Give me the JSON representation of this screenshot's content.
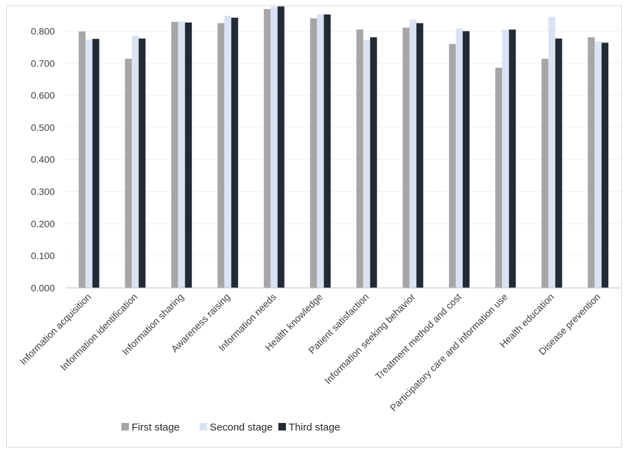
{
  "chart_data": {
    "type": "bar",
    "categories": [
      "Information acquisition",
      "Information identification",
      "Information sharing",
      "Awareness raising",
      "Information needs",
      "Health knowledge",
      "Patient satisfaction",
      "Information seeking behavior",
      "Treatment method and cost",
      "Participatory care and information use",
      "Health education",
      "Disease prevention"
    ],
    "series": [
      {
        "name": "First stage",
        "color": "#a6a6a6",
        "values": [
          0.799,
          0.714,
          0.829,
          0.825,
          0.869,
          0.84,
          0.805,
          0.811,
          0.76,
          0.686,
          0.714,
          0.781
        ]
      },
      {
        "name": "Second stage",
        "color": "#dae3f3",
        "values": [
          0.774,
          0.786,
          0.83,
          0.848,
          0.876,
          0.853,
          0.773,
          0.836,
          0.808,
          0.805,
          0.845,
          0.768
        ]
      },
      {
        "name": "Third stage",
        "color": "#222a35",
        "values": [
          0.776,
          0.777,
          0.827,
          0.842,
          0.877,
          0.852,
          0.781,
          0.825,
          0.8,
          0.805,
          0.777,
          0.764
        ]
      }
    ],
    "y_ticks": [
      "0.000",
      "0.100",
      "0.200",
      "0.300",
      "0.400",
      "0.500",
      "0.600",
      "0.700",
      "0.800"
    ],
    "ylim": [
      0,
      0.88
    ],
    "title": "",
    "xlabel": "",
    "ylabel": "",
    "grid": true,
    "legend_position": "bottom"
  }
}
